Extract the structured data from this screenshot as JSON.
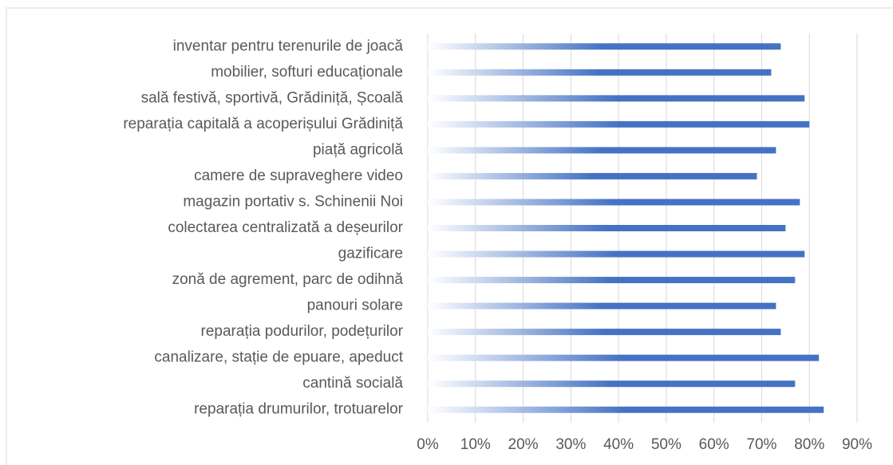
{
  "chart_data": {
    "type": "bar",
    "orientation": "horizontal",
    "categories": [
      "inventar pentru terenurile de joacă",
      "mobilier, softuri educaționale",
      "sală festivă, sportivă, Grădiniță, Școală",
      "reparația capitală a acoperișului Grădiniță",
      "piață agricolă",
      "camere de supraveghere video",
      "magazin portativ s. Schinenii Noi",
      "colectarea centralizată a deșeurilor",
      "gazificare",
      "zonă de agrement, parc de odihnă",
      "panouri solare",
      "reparația podurilor, podețurilor",
      "canalizare, stație de epuare, apeduct",
      "cantină socială",
      "reparația drumurilor, trotuarelor"
    ],
    "values": [
      74,
      72,
      79,
      80,
      73,
      69,
      78,
      75,
      79,
      77,
      73,
      74,
      82,
      77,
      83
    ],
    "color": "#4472c4",
    "xlim": [
      0,
      90
    ],
    "xticks": [
      {
        "value": 0,
        "label": "0%"
      },
      {
        "value": 10,
        "label": "10%"
      },
      {
        "value": 20,
        "label": "20%"
      },
      {
        "value": 30,
        "label": "30%"
      },
      {
        "value": 40,
        "label": "40%"
      },
      {
        "value": 50,
        "label": "50%"
      },
      {
        "value": 60,
        "label": "60%"
      },
      {
        "value": 70,
        "label": "70%"
      },
      {
        "value": 80,
        "label": "80%"
      },
      {
        "value": 90,
        "label": "90%"
      }
    ],
    "grid": true
  }
}
